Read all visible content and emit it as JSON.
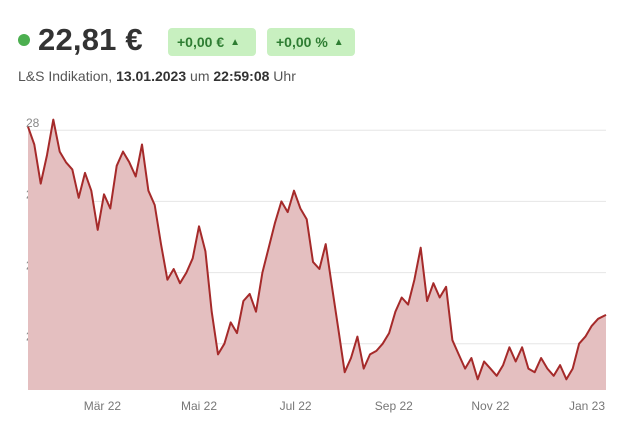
{
  "quote": {
    "price": "22,81 €",
    "change_abs": "+0,00 €",
    "change_pct": "+0,00 %",
    "arrow_icon": "triangle-up-icon",
    "colors": {
      "status": "#4caf50",
      "pill_bg": "#c8f0c0",
      "pill_text": "#2e7d32",
      "line": "#a52a2a",
      "area": "#e4bfc0"
    }
  },
  "subline": {
    "prefix": "L&S Indikation, ",
    "date": "13.01.2023",
    "middle": " um ",
    "time": "22:59:08",
    "suffix": " Uhr"
  },
  "chart_data": {
    "type": "area",
    "ylim": [
      20.7,
      28.4
    ],
    "xlim": [
      "2022-01-13",
      "2023-01-13"
    ],
    "y_ticks": [
      "28",
      "26",
      "24",
      "22"
    ],
    "y_tick_values": [
      28,
      26,
      24,
      22
    ],
    "x_ticks": [
      "Mär 22",
      "Mai 22",
      "Jul 22",
      "Sep 22",
      "Nov 22",
      "Jan 23"
    ],
    "x_tick_dates": [
      "2022-03-01",
      "2022-05-01",
      "2022-07-01",
      "2022-09-01",
      "2022-11-01",
      "2023-01-01"
    ],
    "grid": true,
    "series": [
      {
        "x": [
          "2022-01-13",
          "2022-01-17",
          "2022-01-21",
          "2022-01-25",
          "2022-01-29",
          "2022-02-02",
          "2022-02-06",
          "2022-02-10",
          "2022-02-14",
          "2022-02-18",
          "2022-02-22",
          "2022-02-26",
          "2022-03-02",
          "2022-03-06",
          "2022-03-10",
          "2022-03-14",
          "2022-03-18",
          "2022-03-22",
          "2022-03-26",
          "2022-03-30",
          "2022-04-03",
          "2022-04-07",
          "2022-04-11",
          "2022-04-15",
          "2022-04-19",
          "2022-04-23",
          "2022-04-27",
          "2022-05-01",
          "2022-05-05",
          "2022-05-09",
          "2022-05-13",
          "2022-05-17",
          "2022-05-21",
          "2022-05-25",
          "2022-05-29",
          "2022-06-02",
          "2022-06-06",
          "2022-06-10",
          "2022-06-14",
          "2022-06-18",
          "2022-06-22",
          "2022-06-26",
          "2022-06-30",
          "2022-07-04",
          "2022-07-08",
          "2022-07-12",
          "2022-07-16",
          "2022-07-20",
          "2022-07-24",
          "2022-07-28",
          "2022-08-01",
          "2022-08-05",
          "2022-08-09",
          "2022-08-13",
          "2022-08-17",
          "2022-08-21",
          "2022-08-25",
          "2022-08-29",
          "2022-09-02",
          "2022-09-06",
          "2022-09-10",
          "2022-09-14",
          "2022-09-18",
          "2022-09-22",
          "2022-09-26",
          "2022-09-30",
          "2022-10-04",
          "2022-10-08",
          "2022-10-12",
          "2022-10-16",
          "2022-10-20",
          "2022-10-24",
          "2022-10-28",
          "2022-11-01",
          "2022-11-05",
          "2022-11-09",
          "2022-11-13",
          "2022-11-17",
          "2022-11-21",
          "2022-11-25",
          "2022-11-29",
          "2022-12-03",
          "2022-12-07",
          "2022-12-11",
          "2022-12-15",
          "2022-12-19",
          "2022-12-23",
          "2022-12-27",
          "2022-12-31",
          "2023-01-04",
          "2023-01-08",
          "2023-01-13"
        ],
        "values": [
          28.1,
          27.6,
          26.5,
          27.3,
          28.3,
          27.4,
          27.1,
          26.9,
          26.1,
          26.8,
          26.3,
          25.2,
          26.2,
          25.8,
          27.0,
          27.4,
          27.1,
          26.7,
          27.6,
          26.3,
          25.9,
          24.8,
          23.8,
          24.1,
          23.7,
          24.0,
          24.4,
          25.3,
          24.6,
          22.9,
          21.7,
          22.0,
          22.6,
          22.3,
          23.2,
          23.4,
          22.9,
          24.0,
          24.7,
          25.4,
          26.0,
          25.7,
          26.3,
          25.8,
          25.5,
          24.3,
          24.1,
          24.8,
          23.6,
          22.4,
          21.2,
          21.6,
          22.2,
          21.3,
          21.7,
          21.8,
          22.0,
          22.3,
          22.9,
          23.3,
          23.1,
          23.8,
          24.7,
          23.2,
          23.7,
          23.3,
          23.6,
          22.1,
          21.7,
          21.3,
          21.6,
          21.0,
          21.5,
          21.3,
          21.1,
          21.4,
          21.9,
          21.5,
          21.9,
          21.3,
          21.2,
          21.6,
          21.3,
          21.1,
          21.4,
          21.0,
          21.3,
          22.0,
          22.2,
          22.5,
          22.7,
          22.81
        ]
      }
    ]
  }
}
